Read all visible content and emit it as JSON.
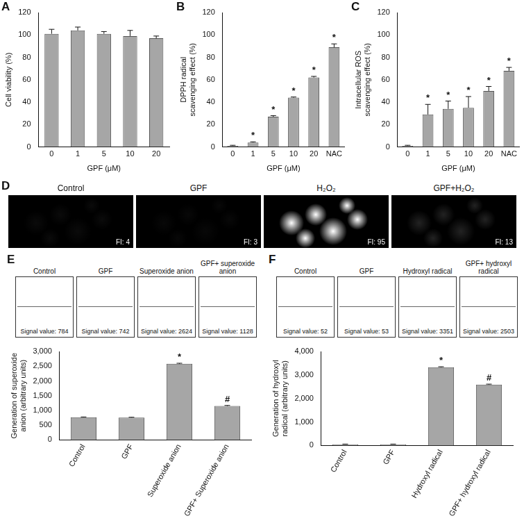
{
  "chart_data": [
    {
      "type": "bar",
      "panel": "A",
      "categories": [
        "0",
        "1",
        "5",
        "10",
        "20"
      ],
      "values": [
        101,
        104,
        101,
        99,
        97
      ],
      "errors": [
        4,
        3,
        2,
        5,
        2
      ],
      "color": "#a6a6a6",
      "y_label": "Cell viability (%)",
      "x_label": "GPF (μM)",
      "ylim": [
        0,
        120
      ],
      "yticks": [
        0,
        20,
        40,
        60,
        80,
        100,
        120
      ],
      "grid": false
    },
    {
      "type": "bar",
      "panel": "B",
      "categories": [
        "0",
        "1",
        "5",
        "10",
        "20",
        "NAC"
      ],
      "values": [
        1,
        4,
        27,
        44,
        62,
        89
      ],
      "errors": [
        0.5,
        0.6,
        1,
        0.6,
        1,
        3
      ],
      "marks": [
        null,
        "*",
        "*",
        "*",
        "*",
        "*"
      ],
      "color": "#a6a6a6",
      "y_label": "DPPH radical scavenging effect (%)",
      "x_label": "GPF (μM)",
      "ylim": [
        0,
        120
      ],
      "yticks": [
        0,
        20,
        40,
        60,
        80,
        100,
        120
      ],
      "grid": false
    },
    {
      "type": "bar",
      "panel": "C",
      "categories": [
        "0",
        "1",
        "5",
        "10",
        "20",
        "NAC"
      ],
      "values": [
        1,
        29,
        34,
        35,
        50,
        68
      ],
      "errors": [
        0.5,
        9,
        7,
        10,
        4,
        3
      ],
      "marks": [
        null,
        "*",
        "*",
        "*",
        "*",
        "*"
      ],
      "color": "#a6a6a6",
      "y_label": "Intracellular ROS scavenging effect (%)",
      "x_label": "GPF (μM)",
      "ylim": [
        0,
        120
      ],
      "yticks": [
        0,
        20,
        40,
        60,
        80,
        100,
        120
      ],
      "grid": false
    },
    {
      "type": "bar",
      "panel": "E",
      "categories": [
        "Control",
        "GPF",
        "Superoxide anion",
        "GPF+ Superoxide anion"
      ],
      "values": [
        770,
        760,
        2580,
        1150
      ],
      "errors": [
        10,
        10,
        20,
        20
      ],
      "marks": [
        null,
        null,
        "*",
        "#"
      ],
      "color": "#a6a6a6",
      "y_label": "Generation of superoxide anion (arbitrary units)",
      "ylim": [
        0,
        3000
      ],
      "yticks": [
        0,
        500,
        {
          "value": 1000,
          "label": "1,000"
        },
        {
          "value": 1500,
          "label": "1,500"
        },
        {
          "value": 2000,
          "label": "2,000"
        },
        {
          "value": 2500,
          "label": "2,500"
        },
        {
          "value": 3000,
          "label": "3,000"
        }
      ],
      "grid": false,
      "spectra": [
        {
          "label": "Control",
          "signal": 784,
          "signal_label": "Signal value: 784"
        },
        {
          "label": "GPF",
          "signal": 742,
          "signal_label": "Signal value: 742"
        },
        {
          "label": "Superoxide anion",
          "signal": 2624,
          "signal_label": "Signal value: 2624"
        },
        {
          "label": "GPF+ superoxide anion",
          "signal": 1128,
          "signal_label": "Signal value: 1128"
        }
      ]
    },
    {
      "type": "bar",
      "panel": "F",
      "categories": [
        "Control",
        "GPF",
        "Hydroxyl radical",
        "GPF+ hydroxyl radical"
      ],
      "values": [
        50,
        50,
        3330,
        2590
      ],
      "errors": [
        10,
        10,
        20,
        20
      ],
      "marks": [
        null,
        null,
        "*",
        "#"
      ],
      "color": "#a6a6a6",
      "y_label": "Generation of hydroxyl radical (arbitrary units)",
      "ylim": [
        0,
        4000
      ],
      "yticks": [
        0,
        {
          "value": 1000,
          "label": "1,000"
        },
        {
          "value": 2000,
          "label": "2,000"
        },
        {
          "value": 3000,
          "label": "3,000"
        },
        {
          "value": 4000,
          "label": "4,000"
        }
      ],
      "grid": false,
      "spectra": [
        {
          "label": "Control",
          "signal": 52,
          "signal_label": "Signal value: 52"
        },
        {
          "label": "GPF",
          "signal": 53,
          "signal_label": "Signal value: 53"
        },
        {
          "label": "Hydroxyl radical",
          "signal": 3351,
          "signal_label": "Signal value: 3351"
        },
        {
          "label": "GPF+ hydroxyl radical",
          "signal": 2503,
          "signal_label": "Signal value: 2503"
        }
      ]
    }
  ],
  "fluorescence": {
    "panel": "D",
    "images": [
      {
        "label": "Control",
        "value": 4,
        "value_label": "FI: 4"
      },
      {
        "label": "GPF",
        "value": 3,
        "value_label": "FI: 3"
      },
      {
        "label": "H₂O₂",
        "value": 95,
        "value_label": "FI: 95"
      },
      {
        "label": "GPF+H₂O₂",
        "value": 13,
        "value_label": "FI: 13"
      }
    ]
  }
}
